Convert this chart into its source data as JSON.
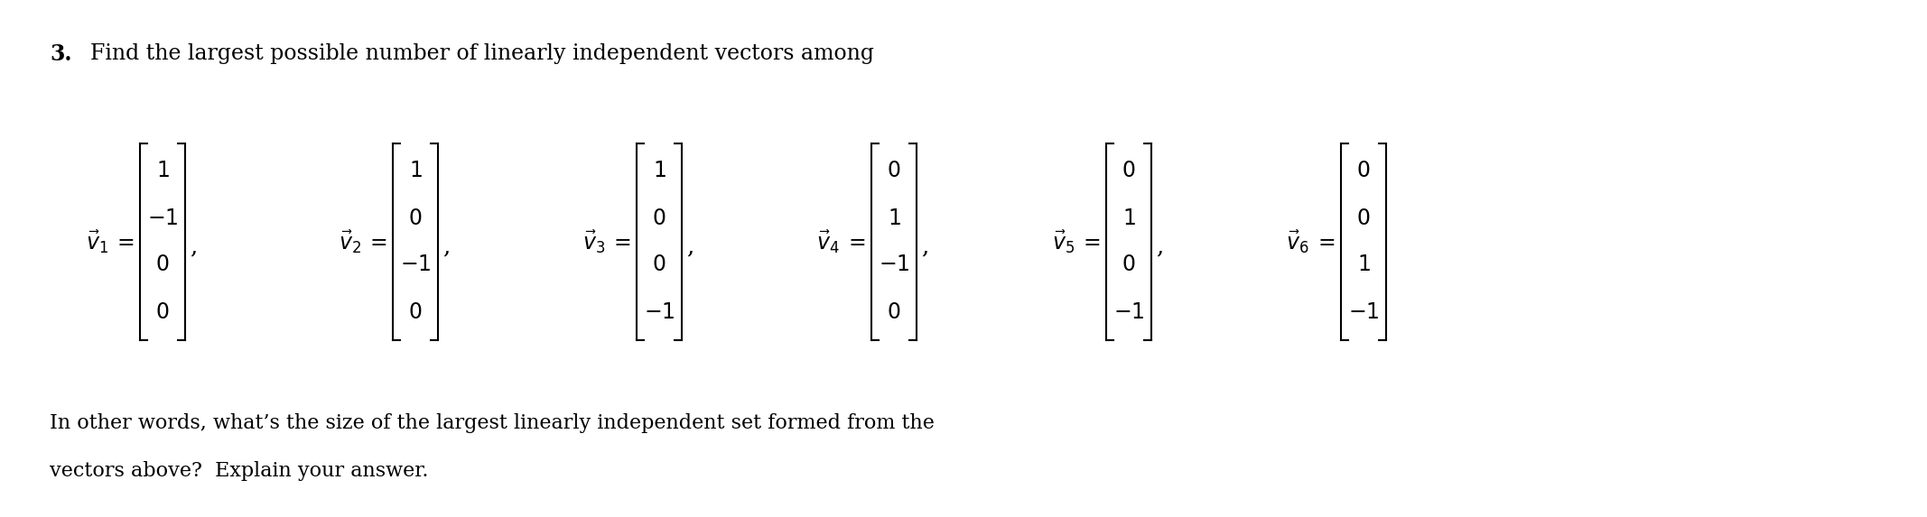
{
  "title_number": "3.",
  "title_text": "Find the largest possible number of linearly independent vectors among",
  "vectors": [
    {
      "name": "v_1",
      "values": [
        "1",
        "-1",
        "0",
        "0"
      ]
    },
    {
      "name": "v_2",
      "values": [
        "1",
        "0",
        "-1",
        "0"
      ]
    },
    {
      "name": "v_3",
      "values": [
        "1",
        "0",
        "0",
        "-1"
      ]
    },
    {
      "name": "v_4",
      "values": [
        "0",
        "1",
        "-1",
        "0"
      ]
    },
    {
      "name": "v_5",
      "values": [
        "0",
        "1",
        "0",
        "-1"
      ]
    },
    {
      "name": "v_6",
      "values": [
        "0",
        "0",
        "1",
        "-1"
      ]
    }
  ],
  "footer_line1": "In other words, what’s the size of the largest linearly independent set formed from the",
  "footer_line2": "vectors above?  Explain your answer.",
  "bg_color": "#ffffff",
  "text_color": "#000000",
  "title_fontsize": 17,
  "body_fontsize": 16,
  "math_fontsize": 17
}
